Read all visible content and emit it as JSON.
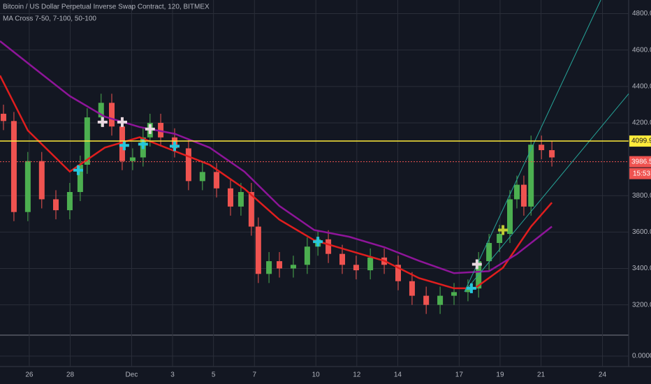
{
  "chart_data": {
    "type": "candlestick",
    "title": "Bitcoin / US Dollar Perpetual Inverse Swap Contract, 120, BITMEX",
    "subtitle": "MA Cross 7-50, 7-100, 50-100",
    "up_color": "#4caf50",
    "down_color": "#ef5350",
    "x": [
      -0.26,
      0.25,
      0.93,
      1.61,
      2.3,
      2.98,
      3.49,
      3.83,
      4.51,
      5.03,
      5.54,
      6.05,
      6.56,
      6.9,
      7.42,
      8.1,
      8.78,
      9.46,
      10.15,
      10.83,
      11.34,
      11.85,
      12.19,
      12.71,
      13.22,
      13.9,
      14.58,
      15.1,
      15.61,
      16.29,
      16.97,
      17.66,
      18.34,
      19.02,
      19.7,
      20.39,
      21.07,
      21.75,
      22.43,
      22.95,
      23.46,
      23.97,
      24.48,
      24.82,
      25.16,
      25.51,
      26.02,
      26.53
    ],
    "open": [
      4250,
      4210,
      3710,
      3990,
      3780,
      3720,
      3820,
      3970,
      4230,
      4310,
      4180,
      3990,
      4010,
      4120,
      4200,
      4120,
      4060,
      3880,
      3930,
      3840,
      3740,
      3820,
      3630,
      3370,
      3440,
      3400,
      3420,
      3520,
      3560,
      3480,
      3420,
      3390,
      3460,
      3420,
      3330,
      3250,
      3200,
      3250,
      3270,
      3290,
      3440,
      3540,
      3590,
      3780,
      3860,
      3740,
      4080,
      4050
    ],
    "high": [
      4300,
      4260,
      4040,
      4040,
      3830,
      3870,
      4020,
      4280,
      4360,
      4360,
      4230,
      4060,
      4170,
      4250,
      4250,
      4170,
      4110,
      3980,
      3980,
      3890,
      3870,
      3870,
      3680,
      3490,
      3490,
      3470,
      3570,
      3610,
      3610,
      3530,
      3470,
      3510,
      3510,
      3470,
      3380,
      3300,
      3300,
      3320,
      3340,
      3490,
      3590,
      3640,
      3830,
      3910,
      3910,
      4130,
      4130,
      4100
    ],
    "low": [
      4160,
      3660,
      3660,
      3730,
      3670,
      3670,
      3770,
      3920,
      4180,
      4130,
      3940,
      3940,
      3960,
      4070,
      4070,
      4010,
      3830,
      3830,
      3790,
      3690,
      3690,
      3580,
      3320,
      3320,
      3350,
      3350,
      3370,
      3470,
      3430,
      3370,
      3340,
      3340,
      3370,
      3280,
      3200,
      3150,
      3150,
      3200,
      3220,
      3240,
      3390,
      3490,
      3540,
      3730,
      3690,
      3690,
      4000,
      3960
    ],
    "close": [
      4210,
      3710,
      3990,
      3780,
      3720,
      3820,
      3970,
      4230,
      4310,
      4180,
      3990,
      4010,
      4120,
      4200,
      4120,
      4060,
      3880,
      3930,
      3840,
      3740,
      3820,
      3630,
      3370,
      3440,
      3400,
      3420,
      3520,
      3560,
      3480,
      3420,
      3390,
      3460,
      3420,
      3330,
      3250,
      3200,
      3250,
      3270,
      3290,
      3440,
      3540,
      3590,
      3780,
      3860,
      3740,
      4080,
      4050,
      4010
    ],
    "series": [
      {
        "color": "#e01e1e",
        "x": [
          -0.43,
          0.93,
          2.98,
          4.69,
          6.39,
          8.1,
          9.81,
          11.51,
          13.22,
          14.92,
          16.63,
          18.34,
          20.04,
          21.75,
          22.77,
          24.14,
          25.51,
          26.53
        ],
        "values": [
          4460,
          4158,
          3932,
          4064,
          4121,
          4045,
          3970,
          3838,
          3668,
          3555,
          3498,
          3442,
          3347,
          3291,
          3291,
          3404,
          3630,
          3762
        ]
      },
      {
        "color": "#8e1599",
        "x": [
          -0.43,
          1.27,
          2.98,
          4.69,
          6.39,
          8.1,
          9.81,
          11.51,
          13.22,
          14.92,
          16.63,
          18.34,
          20.04,
          21.75,
          23.46,
          24.82,
          26.53
        ],
        "values": [
          4649,
          4498,
          4347,
          4234,
          4177,
          4140,
          4064,
          3932,
          3743,
          3611,
          3574,
          3517,
          3442,
          3374,
          3385,
          3479,
          3630
        ]
      }
    ],
    "markers": [
      {
        "color": "#26c6da",
        "x": [
          3.39,
          5.64,
          6.56,
          8.1,
          15.1,
          22.6
        ],
        "y": [
          3940,
          4076,
          4083,
          4072,
          3547,
          3291
        ]
      },
      {
        "color": "#e8d8e0",
        "x": [
          4.58,
          5.54,
          6.9,
          22.87
        ],
        "y": [
          4204,
          4204,
          4166,
          3423
        ]
      },
      {
        "color": "#c0ca33",
        "x": [
          24.14
        ],
        "y": [
          3611
        ]
      }
    ],
    "trendlines": [
      {
        "color": "#26a69a",
        "x": [
          22.26,
          28.92
        ],
        "y": [
          3272,
          4875
        ]
      },
      {
        "color": "#26a69a",
        "x": [
          22.26,
          31.3
        ],
        "y": [
          3272,
          4498
        ]
      }
    ],
    "levels": [
      {
        "value": 4099.9,
        "label": "4099.9",
        "color": "#ffeb3b"
      },
      {
        "value": 3986.5,
        "label": "3986.5",
        "color": "#ef5350"
      }
    ],
    "countdown": "15:53",
    "xlim": [
      -0.43,
      30.28
    ],
    "ylim": [
      3072,
      4875
    ],
    "xticks": [
      {
        "value": 1,
        "label": "26"
      },
      {
        "value": 3,
        "label": "28"
      },
      {
        "value": 6,
        "label": "Dec"
      },
      {
        "value": 8,
        "label": "3"
      },
      {
        "value": 10,
        "label": "5"
      },
      {
        "value": 12,
        "label": "7"
      },
      {
        "value": 15,
        "label": "10"
      },
      {
        "value": 17,
        "label": "12"
      },
      {
        "value": 19,
        "label": "14"
      },
      {
        "value": 22,
        "label": "17"
      },
      {
        "value": 24,
        "label": "19"
      },
      {
        "value": 26,
        "label": "21"
      },
      {
        "value": 29,
        "label": "24"
      }
    ],
    "yticks": [
      {
        "value": 3200,
        "label": "3200.0"
      },
      {
        "value": 3400,
        "label": "3400.0"
      },
      {
        "value": 3600,
        "label": "3600.0"
      },
      {
        "value": 3800,
        "label": "3800.0"
      },
      {
        "value": 4200,
        "label": "4200.0"
      },
      {
        "value": 4400,
        "label": "4400.0"
      },
      {
        "value": 4600,
        "label": "4600.0"
      },
      {
        "value": 4800,
        "label": "4800.0"
      }
    ],
    "lower_yticks": [
      {
        "value": 0,
        "label": "0.0000"
      }
    ],
    "grid": true
  }
}
